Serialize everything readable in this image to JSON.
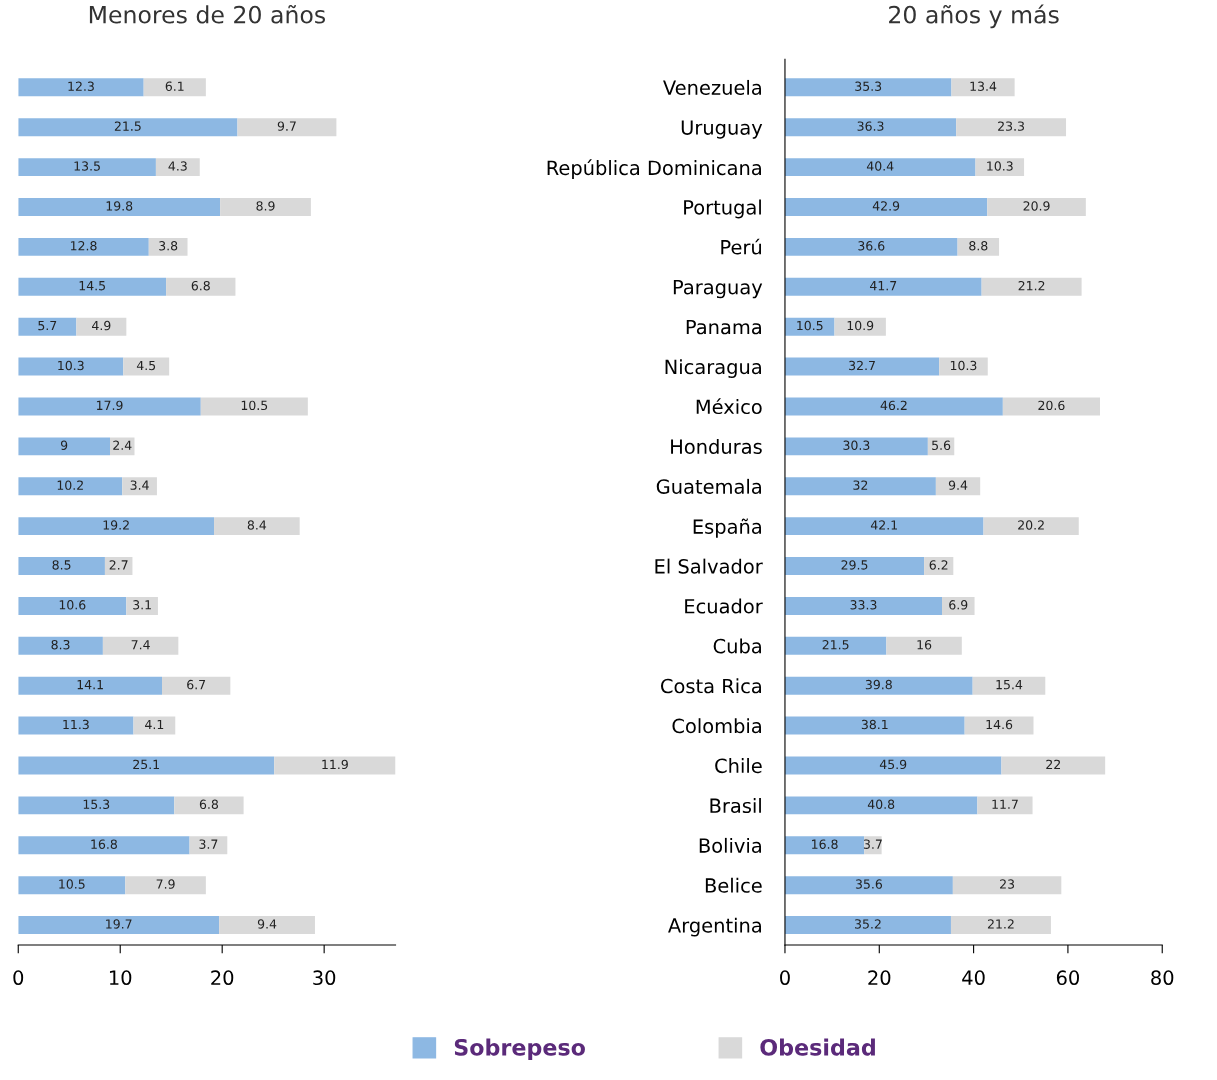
{
  "chart_data": [
    {
      "type": "bar",
      "orientation": "horizontal",
      "stacked": true,
      "title": "Menores de 20 años",
      "categories": [
        null,
        null,
        null,
        null,
        null,
        null,
        null,
        null,
        null,
        null,
        null,
        null,
        null,
        null,
        null,
        null,
        null,
        null,
        null,
        null,
        null,
        null
      ],
      "series": [
        {
          "color": "#8db8e3",
          "values": [
            12.3,
            21.5,
            13.5,
            19.8,
            12.8,
            14.5,
            5.7,
            10.3,
            17.9,
            9,
            10.2,
            19.2,
            8.5,
            10.6,
            8.3,
            14.1,
            11.3,
            25.1,
            15.3,
            16.8,
            10.5,
            19.7
          ]
        },
        {
          "color": "#d9d9d9",
          "values": [
            6.1,
            9.7,
            4.3,
            8.9,
            3.8,
            6.8,
            4.9,
            4.5,
            10.5,
            2.4,
            3.4,
            8.4,
            2.7,
            3.1,
            7.4,
            6.7,
            4.1,
            11.9,
            6.8,
            3.7,
            7.9,
            9.4
          ]
        }
      ],
      "xlim": [
        0,
        37
      ],
      "xticks": [
        0,
        10,
        20,
        30
      ],
      "tick_labels": "x",
      "data_labels": true,
      "grid": false
    },
    {
      "type": "bar",
      "orientation": "horizontal",
      "stacked": true,
      "title": "20 años y más",
      "categories": [
        "Venezuela",
        "Uruguay",
        "República Dominicana",
        "Portugal",
        "Perú",
        "Paraguay",
        "Panama",
        "Nicaragua",
        "México",
        "Honduras",
        "Guatemala",
        "España",
        "El Salvador",
        "Ecuador",
        "Cuba",
        "Costa Rica",
        "Colombia",
        "Chile",
        "Brasil",
        "Bolivia",
        "Belice",
        "Argentina"
      ],
      "series": [
        {
          "name": "Sobrepeso",
          "color": "#8db8e3",
          "values": [
            35.3,
            36.3,
            40.4,
            42.9,
            36.6,
            41.7,
            10.5,
            32.7,
            46.2,
            30.3,
            32,
            42.1,
            29.5,
            33.3,
            21.5,
            39.8,
            38.1,
            45.9,
            40.8,
            16.8,
            35.6,
            35.2
          ]
        },
        {
          "name": "Obesidad",
          "color": "#d9d9d9",
          "values": [
            13.4,
            23.3,
            10.3,
            20.9,
            8.8,
            21.2,
            10.9,
            10.3,
            20.6,
            5.6,
            9.4,
            20.2,
            6.2,
            6.9,
            16,
            15.4,
            14.6,
            22,
            11.7,
            3.7,
            23,
            21.2
          ]
        }
      ],
      "xlim": [
        0,
        80
      ],
      "xticks": [
        0,
        20,
        40,
        60,
        80
      ],
      "data_labels": true,
      "grid": false,
      "legend": "bottom"
    }
  ]
}
